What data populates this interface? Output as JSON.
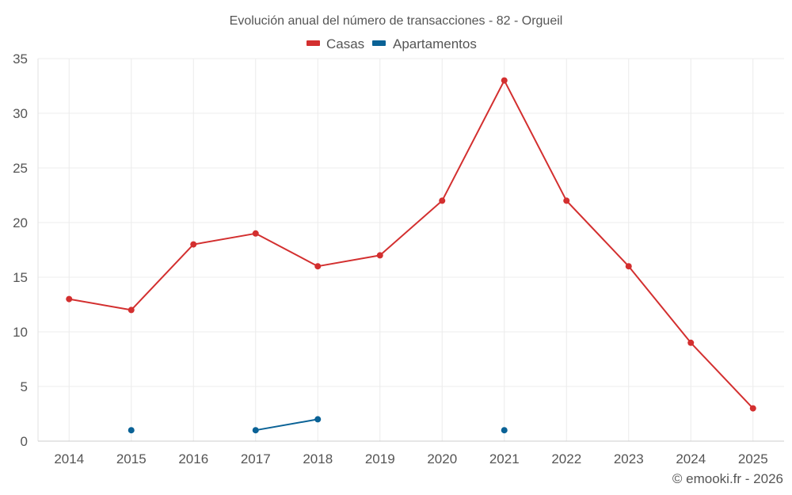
{
  "chart_data": {
    "type": "line",
    "title": "Evolución anual del número de transacciones - 82 - Orgueil",
    "xlabel": "",
    "ylabel": "",
    "categories": [
      "2014",
      "2015",
      "2016",
      "2017",
      "2018",
      "2019",
      "2020",
      "2021",
      "2022",
      "2023",
      "2024",
      "2025"
    ],
    "ylim": [
      0,
      35
    ],
    "yticks": [
      0,
      5,
      10,
      15,
      20,
      25,
      30,
      35
    ],
    "grid": true,
    "legend_position": "top-center",
    "series": [
      {
        "name": "Casas",
        "color": "#d32f2f",
        "values": [
          13,
          12,
          18,
          19,
          16,
          17,
          22,
          33,
          22,
          16,
          9,
          3
        ]
      },
      {
        "name": "Apartamentos",
        "color": "#0a6296",
        "values": [
          null,
          1,
          null,
          1,
          2,
          null,
          null,
          1,
          null,
          null,
          null,
          null
        ]
      }
    ],
    "credit": "© emooki.fr - 2026"
  }
}
